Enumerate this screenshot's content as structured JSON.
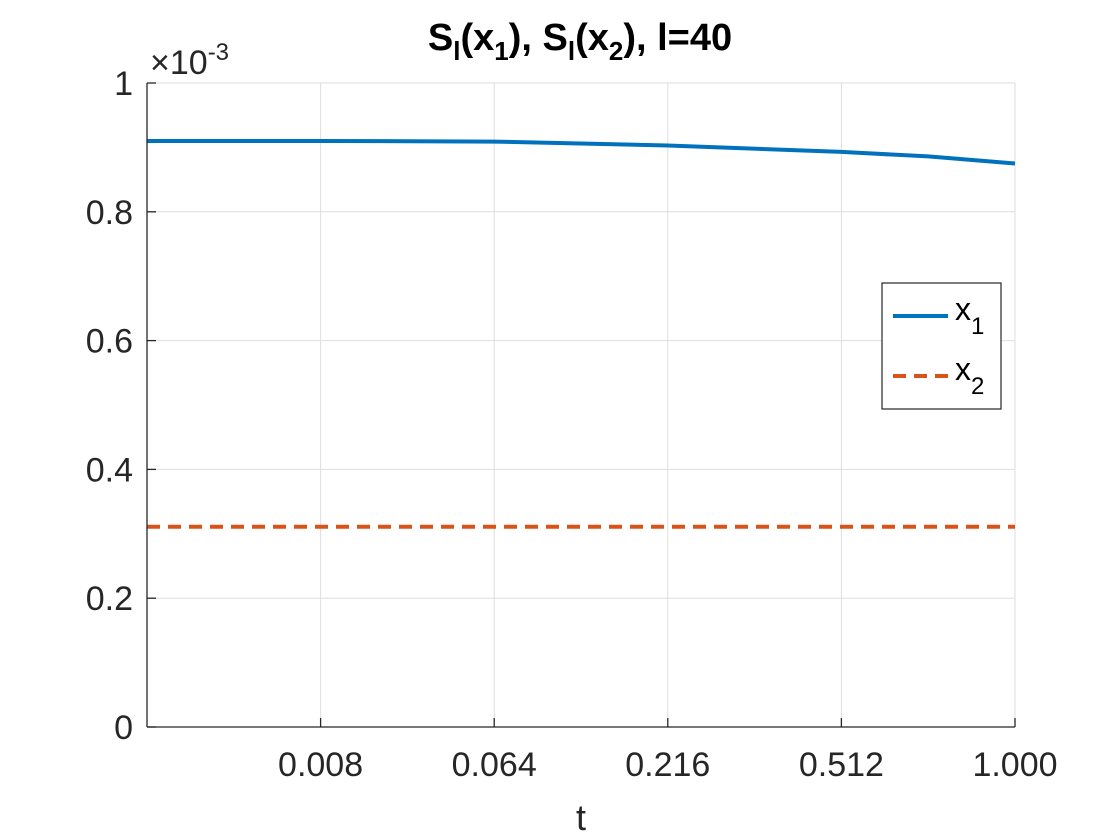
{
  "chart_data": {
    "type": "line",
    "title": {
      "s1_main": "S",
      "s1_sub": "l",
      "s1_mid": "(x",
      "s1_arg_sub": "1",
      "s1_close": "), ",
      "s2_main": "S",
      "s2_sub": "l",
      "s2_mid": "(x",
      "s2_arg_sub": "2",
      "s2_close": "), l=40"
    },
    "xlabel": "t",
    "ylabel": "",
    "y_exponent": {
      "base": "×10",
      "power": "-3"
    },
    "x_scale": "cubic",
    "xlim": [
      0,
      1
    ],
    "ylim": [
      0,
      1
    ],
    "grid": true,
    "x_tick_values": [
      0.008,
      0.064,
      0.216,
      0.512,
      1.0
    ],
    "x_tick_labels": [
      "0.008",
      "0.064",
      "0.216",
      "0.512",
      "1.000"
    ],
    "y_tick_values": [
      0,
      0.2,
      0.4,
      0.6,
      0.8,
      1
    ],
    "y_tick_labels": [
      "0",
      "0.2",
      "0.4",
      "0.6",
      "0.8",
      "1"
    ],
    "legend_position": "right",
    "series": [
      {
        "name_main": "x",
        "name_sub": "1",
        "color": "#0072BD",
        "style": "solid",
        "x": [
          0,
          0.008,
          0.064,
          0.216,
          0.512,
          0.729,
          1.0
        ],
        "y": [
          0.91,
          0.91,
          0.909,
          0.903,
          0.893,
          0.886,
          0.875
        ]
      },
      {
        "name_main": "x",
        "name_sub": "2",
        "color": "#D95319",
        "style": "dashed",
        "x": [
          0,
          1.0
        ],
        "y": [
          0.311,
          0.311
        ]
      }
    ]
  }
}
